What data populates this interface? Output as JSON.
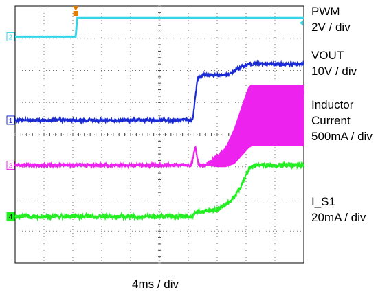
{
  "chart_data": {
    "type": "line",
    "x_divisions": 10,
    "y_divisions": 8,
    "grid": true,
    "xlabel": "4ms / div",
    "channels": [
      {
        "id": "2",
        "name": "PWM",
        "scale": "2V / div",
        "color": "#33d6e8",
        "points": [
          [
            0,
            7.05
          ],
          [
            2.1,
            7.05
          ],
          [
            2.15,
            7.63
          ],
          [
            10,
            7.63
          ]
        ]
      },
      {
        "id": "1",
        "name": "VOUT",
        "scale": "10V / div",
        "color": "#1a2bd6",
        "points": [
          [
            0,
            4.45
          ],
          [
            6.15,
            4.45
          ],
          [
            6.32,
            5.75
          ],
          [
            6.5,
            5.86
          ],
          [
            7.4,
            5.86
          ],
          [
            7.75,
            6.08
          ],
          [
            8.1,
            6.2
          ],
          [
            10,
            6.2
          ]
        ]
      },
      {
        "id": "3",
        "name": "Inductor Current",
        "scale": "500mA / div",
        "color": "#ee22ee",
        "points": [
          [
            0,
            3.05
          ],
          [
            6.1,
            3.05
          ],
          [
            6.25,
            3.6
          ],
          [
            6.35,
            3.05
          ],
          [
            6.6,
            3.05
          ],
          [
            7.3,
            3.55
          ],
          [
            7.7,
            4.1
          ],
          [
            8.0,
            5.1
          ],
          [
            8.2,
            5.3
          ],
          [
            10,
            5.3
          ]
        ]
      },
      {
        "id": "4",
        "name": "I_S1",
        "scale": "20mA / div",
        "color": "#22ee22",
        "points": [
          [
            0,
            1.45
          ],
          [
            6.1,
            1.45
          ],
          [
            6.3,
            1.6
          ],
          [
            7.0,
            1.65
          ],
          [
            7.5,
            1.95
          ],
          [
            7.8,
            2.35
          ],
          [
            8.1,
            2.95
          ],
          [
            8.3,
            3.05
          ],
          [
            10,
            3.05
          ]
        ]
      }
    ],
    "trigger_level": 7.05,
    "trigger_time": 2.1
  }
}
